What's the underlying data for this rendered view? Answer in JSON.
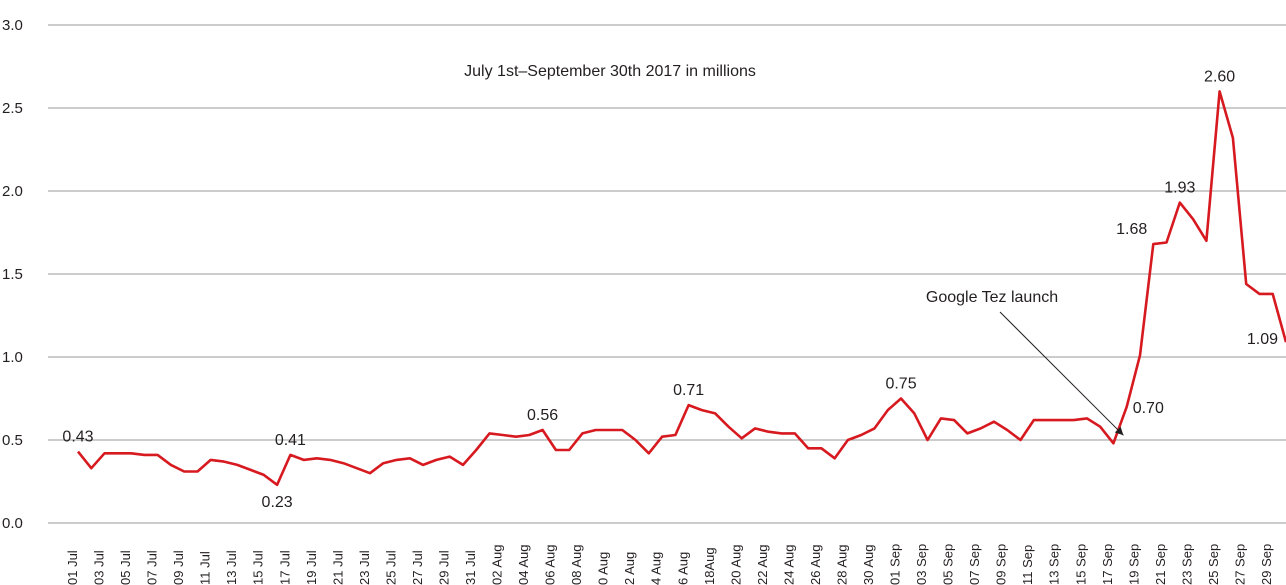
{
  "chart_data": {
    "type": "line",
    "title": "July 1st–September 30th 2017 in millions",
    "xlabel": "",
    "ylabel": "",
    "ylim": [
      0,
      3.0
    ],
    "yticks": [
      "0.0",
      "0.5",
      "1.0",
      "1.5",
      "2.0",
      "2.5",
      "3.0"
    ],
    "grid": true,
    "x_tick_labels": [
      "01 Jul",
      "03 Jul",
      "05 Jul",
      "07 Jul",
      "09 Jul",
      "11 Jul",
      "13 Jul",
      "15 Jul",
      "17 Jul",
      "19 Jul",
      "21 Jul",
      "23 Jul",
      "25 Jul",
      "27 Jul",
      "29 Jul",
      "31 Jul",
      "02 Aug",
      "04 Aug",
      "06 Aug",
      "08 Aug",
      "0 Aug",
      "2 Aug",
      "4 Aug",
      "6 Aug",
      "18Aug",
      "20 Aug",
      "22 Aug",
      "24 Aug",
      "26 Aug",
      "28 Aug",
      "30 Aug",
      "01 Sep",
      "03 Sep",
      "05 Sep",
      "07 Sep",
      "09 Sep",
      "11 Sep",
      "13 Sep",
      "15 Sep",
      "17 Sep",
      "19 Sep",
      "21 Sep",
      "23 Sep",
      "25 Sep",
      "27 Sep",
      "29 Sep"
    ],
    "series": [
      {
        "color": "#d71920",
        "values": [
          0.43,
          0.33,
          0.42,
          0.42,
          0.42,
          0.41,
          0.41,
          0.35,
          0.31,
          0.31,
          0.38,
          0.37,
          0.35,
          0.32,
          0.29,
          0.23,
          0.41,
          0.38,
          0.39,
          0.38,
          0.36,
          0.33,
          0.3,
          0.36,
          0.38,
          0.39,
          0.35,
          0.38,
          0.4,
          0.35,
          0.44,
          0.54,
          0.53,
          0.52,
          0.53,
          0.56,
          0.44,
          0.44,
          0.54,
          0.56,
          0.56,
          0.56,
          0.5,
          0.42,
          0.52,
          0.53,
          0.71,
          0.68,
          0.66,
          0.58,
          0.51,
          0.57,
          0.55,
          0.54,
          0.54,
          0.45,
          0.45,
          0.39,
          0.5,
          0.53,
          0.57,
          0.68,
          0.75,
          0.66,
          0.5,
          0.63,
          0.62,
          0.54,
          0.57,
          0.61,
          0.56,
          0.5,
          0.62,
          0.62,
          0.62,
          0.62,
          0.63,
          0.58,
          0.48,
          0.7,
          1.01,
          1.68,
          1.69,
          1.93,
          1.83,
          1.7,
          2.6,
          2.32,
          1.44,
          1.38,
          1.38,
          1.09
        ]
      }
    ],
    "data_labels": [
      {
        "index": 0,
        "text": "0.43",
        "pos": "above"
      },
      {
        "index": 15,
        "text": "0.23",
        "pos": "below"
      },
      {
        "index": 16,
        "text": "0.41",
        "pos": "above"
      },
      {
        "index": 35,
        "text": "0.56",
        "pos": "above"
      },
      {
        "index": 46,
        "text": "0.71",
        "pos": "above"
      },
      {
        "index": 62,
        "text": "0.75",
        "pos": "above"
      },
      {
        "index": 79,
        "text": "0.70",
        "pos": "right"
      },
      {
        "index": 81,
        "text": "1.68",
        "pos": "left"
      },
      {
        "index": 83,
        "text": "1.93",
        "pos": "above"
      },
      {
        "index": 86,
        "text": "2.60",
        "pos": "above"
      },
      {
        "index": 91,
        "text": "1.09",
        "pos": "left"
      }
    ],
    "annotation": {
      "text": "Google Tez launch",
      "target_index": 78
    }
  }
}
